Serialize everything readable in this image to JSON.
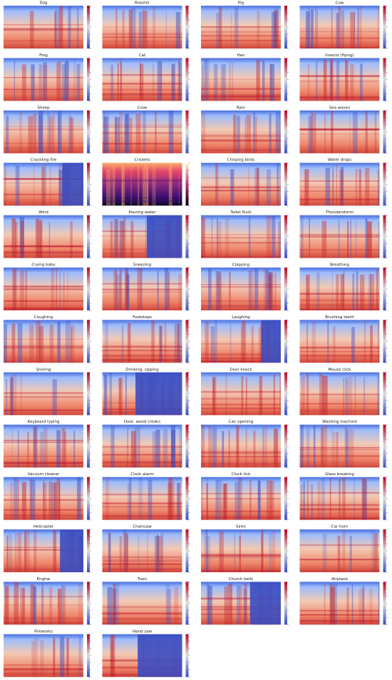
{
  "panels": [
    {
      "title": "Dog"
    },
    {
      "title": "Rooster"
    },
    {
      "title": "Pig"
    },
    {
      "title": "Cow"
    },
    {
      "title": "Frog"
    },
    {
      "title": "Cat"
    },
    {
      "title": "Hen"
    },
    {
      "title": "Insects (flying)"
    },
    {
      "title": "Sheep"
    },
    {
      "title": "Crow"
    },
    {
      "title": "Rain"
    },
    {
      "title": "Sea waves"
    },
    {
      "title": "Crackling fire"
    },
    {
      "title": "Crickets"
    },
    {
      "title": "Chirping birds"
    },
    {
      "title": "Water drops"
    },
    {
      "title": "Wind"
    },
    {
      "title": "Pouring water"
    },
    {
      "title": "Toilet flush"
    },
    {
      "title": "Thunderstorm"
    },
    {
      "title": "Crying baby"
    },
    {
      "title": "Sneezing"
    },
    {
      "title": "Clapping"
    },
    {
      "title": "Breathing"
    },
    {
      "title": "Coughing"
    },
    {
      "title": "Footsteps"
    },
    {
      "title": "Laughing"
    },
    {
      "title": "Brushing teeth"
    },
    {
      "title": "Snoring"
    },
    {
      "title": "Drinking, sipping"
    },
    {
      "title": "Door knock"
    },
    {
      "title": "Mouse click"
    },
    {
      "title": "Keyboard typing"
    },
    {
      "title": "Door, wood creaks"
    },
    {
      "title": "Can opening"
    },
    {
      "title": "Washing machine"
    },
    {
      "title": "Vacuum cleaner"
    },
    {
      "title": "Clock alarm"
    },
    {
      "title": "Clock tick"
    },
    {
      "title": "Glass breaking"
    },
    {
      "title": "Helicopter"
    },
    {
      "title": "Chainsaw"
    },
    {
      "title": "Siren"
    },
    {
      "title": "Car horn"
    },
    {
      "title": "Engine"
    },
    {
      "title": "Train"
    },
    {
      "title": "Church bells"
    },
    {
      "title": "Airplane"
    },
    {
      "title": "Fireworks"
    },
    {
      "title": "Hand saw"
    }
  ]
}
